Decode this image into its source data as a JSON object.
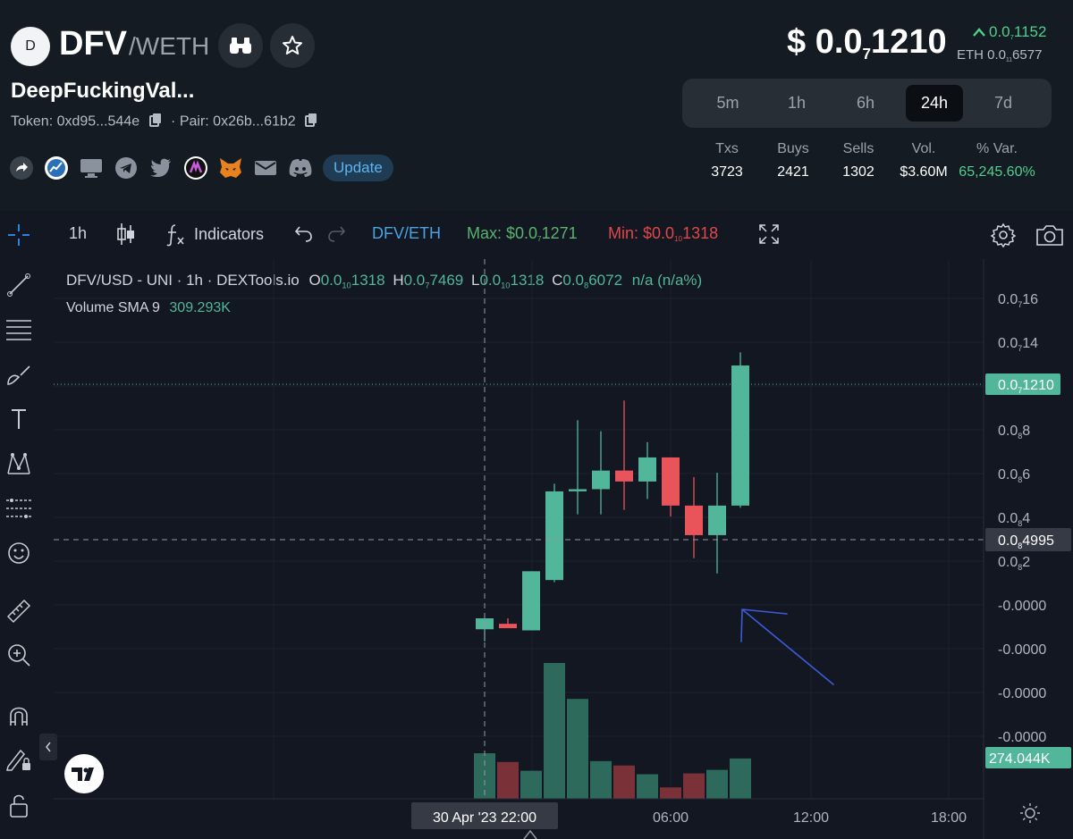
{
  "header": {
    "avatar_letter": "D",
    "base": "DFV",
    "quote": "/WETH",
    "token_name": "DeepFuckingVal...",
    "token_label": "Token:",
    "token_addr": "0xd95...544e",
    "pair_label": "Pair:",
    "pair_addr": "0x26b...61b2",
    "update_label": "Update",
    "social_icons": [
      "share-icon",
      "chart-app-icon",
      "monitor-icon",
      "telegram-icon",
      "twitter-icon",
      "dextools-app-icon",
      "metamask-icon",
      "mail-icon",
      "discord-icon"
    ]
  },
  "price": {
    "prefix": "$ 0.0",
    "sub": "7",
    "rest": "1210",
    "change_arrow": "^",
    "change_prefix": "0.0",
    "change_sub": "7",
    "change_rest": "1152",
    "eth_prefix": "ETH 0.0",
    "eth_sub": "11",
    "eth_rest": "6577"
  },
  "timeframes": {
    "items": [
      "5m",
      "1h",
      "6h",
      "24h",
      "7d"
    ],
    "active": "24h"
  },
  "stats": [
    {
      "label": "Txs",
      "value": "3723"
    },
    {
      "label": "Buys",
      "value": "2421"
    },
    {
      "label": "Sells",
      "value": "1302"
    },
    {
      "label": "Vol.",
      "value": "$3.60M"
    },
    {
      "label": "% Var.",
      "value": "65,245.60%"
    }
  ],
  "toolbar": {
    "interval": "1h",
    "indicators": "Indicators",
    "pair": "DFV/ETH",
    "max_label": "Max: $0.0",
    "max_sub": "7",
    "max_rest": "1271",
    "min_label": "Min: $0.0",
    "min_sub": "10",
    "min_rest": "1318"
  },
  "legend": {
    "symbol": "DFV/USD - UNI · 1h · DEXTools.io",
    "o_label": "O",
    "o_prefix": "0.0",
    "o_sub": "10",
    "o_rest": "1318",
    "h_label": "H",
    "h_prefix": "0.0",
    "h_sub": "7",
    "h_rest": "7469",
    "l_label": "L",
    "l_prefix": "0.0",
    "l_sub": "10",
    "l_rest": "1318",
    "c_label": "C",
    "c_prefix": "0.0",
    "c_sub": "8",
    "c_rest": "6072",
    "change": "n/a (n/a%)",
    "volume_label": "Volume SMA 9",
    "volume_value": "309.293K"
  },
  "price_axis": {
    "ticks": [
      {
        "prefix": "0.0",
        "sub": "7",
        "rest": "16"
      },
      {
        "prefix": "0.0",
        "sub": "7",
        "rest": "14"
      },
      {
        "prefix": "0.0",
        "sub": "7",
        "rest": "1"
      },
      {
        "prefix": "0.0",
        "sub": "8",
        "rest": "8"
      },
      {
        "prefix": "0.0",
        "sub": "8",
        "rest": "6"
      },
      {
        "prefix": "0.0",
        "sub": "8",
        "rest": "4"
      },
      {
        "prefix": "0.0",
        "sub": "8",
        "rest": "2"
      },
      {
        "prefix": "-0.0000",
        "sub": "",
        "rest": ""
      },
      {
        "prefix": "-0.0000",
        "sub": "",
        "rest": ""
      },
      {
        "prefix": "-0.0000",
        "sub": "",
        "rest": ""
      },
      {
        "prefix": "-0.0000",
        "sub": "",
        "rest": ""
      }
    ],
    "last_price": {
      "prefix": "0.0",
      "sub": "7",
      "rest": "1210"
    },
    "crosshair_price": {
      "prefix": "0.0",
      "sub": "8",
      "rest": "4995"
    },
    "volume_badge": "274.044K"
  },
  "time_axis": {
    "ticks": [
      "06:00",
      "12:00",
      "18:00"
    ],
    "crosshair_label": "30 Apr '23   22:00"
  },
  "colors": {
    "up": "#52b69a",
    "down": "#e8545a",
    "up_vol": "#2e6a5c",
    "down_vol": "#7a3238",
    "annotation": "#3d5bd8"
  },
  "chart_data": {
    "type": "candlestick",
    "series": [
      {
        "name": "DFV/USD - UNI",
        "unit": "USD x 1e-8",
        "candles": [
          {
            "open": 0.05,
            "high": 0.35,
            "low": -0.5,
            "close": 0.55
          },
          {
            "open": 0.3,
            "high": 0.55,
            "low": 0.15,
            "close": 0.1
          },
          {
            "open": 0.0,
            "high": 2.7,
            "low": 0.0,
            "close": 2.7
          },
          {
            "open": 2.3,
            "high": 6.7,
            "low": 2.2,
            "close": 6.35
          },
          {
            "open": 6.35,
            "high": 9.6,
            "low": 5.3,
            "close": 6.45
          },
          {
            "open": 6.45,
            "high": 9.1,
            "low": 5.3,
            "close": 7.3
          },
          {
            "open": 7.3,
            "high": 10.5,
            "low": 5.5,
            "close": 6.8
          },
          {
            "open": 6.8,
            "high": 8.6,
            "low": 6.0,
            "close": 7.9
          },
          {
            "open": 7.9,
            "high": 7.9,
            "low": 5.2,
            "close": 5.7
          },
          {
            "open": 5.7,
            "high": 7.0,
            "low": 3.3,
            "close": 4.35
          },
          {
            "open": 4.35,
            "high": 7.2,
            "low": 2.6,
            "close": 5.7
          },
          {
            "open": 5.7,
            "high": 12.7,
            "low": 5.6,
            "close": 12.1
          }
        ]
      },
      {
        "name": "Volume",
        "values": [
          52,
          42,
          32,
          155,
          114,
          43,
          38,
          28,
          13,
          29,
          33,
          46
        ],
        "direction": [
          "up",
          "down",
          "up",
          "up",
          "up",
          "up",
          "down",
          "up",
          "down",
          "down",
          "up",
          "up"
        ]
      }
    ],
    "ylim": [
      -6,
      17
    ]
  }
}
